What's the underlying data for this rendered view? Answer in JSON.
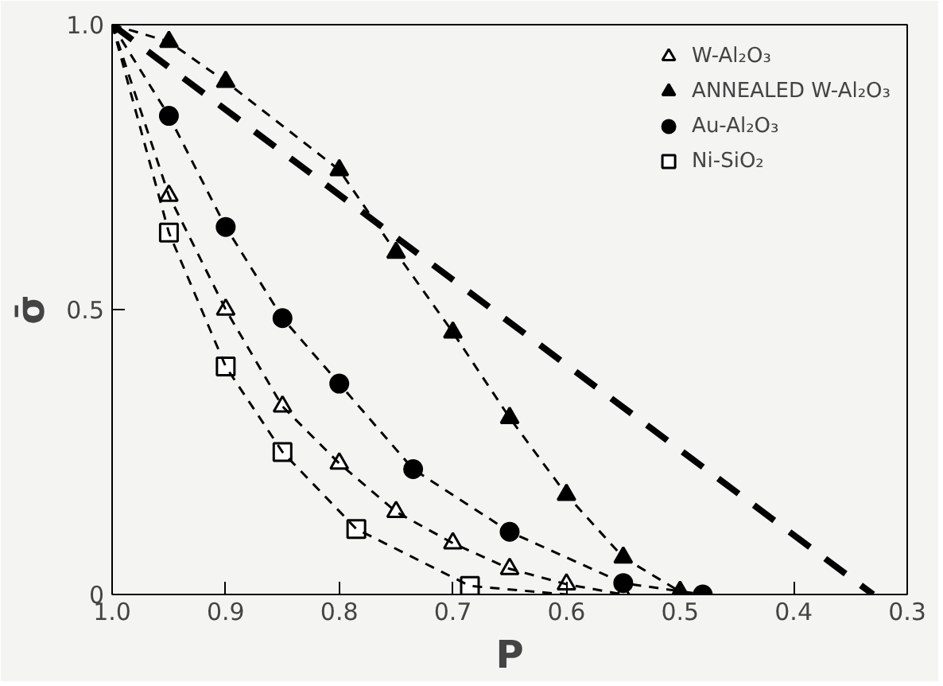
{
  "chart_data": {
    "type": "line",
    "xlabel": "P",
    "ylabel": "σ̄",
    "xlim": [
      1.0,
      0.3
    ],
    "ylim": [
      0,
      1.0
    ],
    "xticks": [
      {
        "value": 1.0,
        "label": "1.0"
      },
      {
        "value": 0.9,
        "label": "0.9"
      },
      {
        "value": 0.8,
        "label": "0.8"
      },
      {
        "value": 0.7,
        "label": "0.7"
      },
      {
        "value": 0.6,
        "label": "0.6"
      },
      {
        "value": 0.5,
        "label": "0.5"
      },
      {
        "value": 0.4,
        "label": "0.4"
      },
      {
        "value": 0.3,
        "label": "0.3"
      }
    ],
    "yticks": [
      0,
      0.5,
      {
        "value": 1.0,
        "label": "1.0"
      }
    ],
    "grid": false,
    "legend": "top right",
    "series": [
      {
        "name": "W-Al₂O₃",
        "type": "scatter",
        "marker": "triangle",
        "color": "#ffffff",
        "x": [
          0.95,
          0.9,
          0.85,
          0.8,
          0.75,
          0.7,
          0.65,
          0.6,
          0.55
        ],
        "values": [
          0.7,
          0.5,
          0.33,
          0.23,
          0.145,
          0.09,
          0.045,
          0.018,
          0.0
        ]
      },
      {
        "name": "ANNEALED W-Al₂O₃",
        "type": "scatter",
        "marker": "triangle",
        "color": "#000000",
        "x": [
          0.95,
          0.9,
          0.8,
          0.75,
          0.7,
          0.65,
          0.6,
          0.55,
          0.5
        ],
        "values": [
          0.97,
          0.9,
          0.745,
          0.6,
          0.46,
          0.31,
          0.175,
          0.065,
          0.005
        ]
      },
      {
        "name": "Au-Al₂O₃",
        "type": "scatter",
        "marker": "circle",
        "color": "#000000",
        "x": [
          0.95,
          0.9,
          0.85,
          0.8,
          0.735,
          0.65,
          0.55,
          0.48
        ],
        "values": [
          0.84,
          0.645,
          0.485,
          0.37,
          0.22,
          0.11,
          0.02,
          0.0
        ]
      },
      {
        "name": "Ni-SiO₂",
        "type": "scatter",
        "marker": "square",
        "color": "#ffffff",
        "x": [
          0.95,
          0.9,
          0.85,
          0.785,
          0.685
        ],
        "values": [
          0.635,
          0.4,
          0.25,
          0.115,
          0.015
        ]
      },
      {
        "line_style": "dotted",
        "color": "#000000",
        "x": [
          1.0,
          0.95,
          0.9,
          0.85,
          0.8,
          0.75,
          0.7,
          0.65,
          0.6,
          0.55
        ],
        "values": [
          1.0,
          0.7,
          0.5,
          0.33,
          0.23,
          0.145,
          0.09,
          0.045,
          0.018,
          0.0
        ]
      },
      {
        "line_style": "dotted",
        "color": "#000000",
        "x": [
          1.0,
          0.95,
          0.9,
          0.8,
          0.75,
          0.7,
          0.65,
          0.6,
          0.55,
          0.5
        ],
        "values": [
          1.0,
          0.97,
          0.9,
          0.745,
          0.6,
          0.46,
          0.31,
          0.175,
          0.065,
          0.005
        ]
      },
      {
        "line_style": "dotted",
        "color": "#000000",
        "x": [
          1.0,
          0.95,
          0.9,
          0.85,
          0.8,
          0.735,
          0.65,
          0.55,
          0.48
        ],
        "values": [
          1.0,
          0.84,
          0.645,
          0.485,
          0.37,
          0.22,
          0.11,
          0.02,
          0.0
        ]
      },
      {
        "line_style": "dotted",
        "color": "#000000",
        "x": [
          1.0,
          0.95,
          0.9,
          0.85,
          0.785,
          0.685,
          0.6
        ],
        "values": [
          1.0,
          0.635,
          0.4,
          0.25,
          0.115,
          0.015,
          0.0
        ]
      },
      {
        "line_style": "dashed",
        "color": "#000000",
        "x": [
          1.0,
          0.33
        ],
        "values": [
          1.0,
          0.0
        ]
      }
    ]
  }
}
